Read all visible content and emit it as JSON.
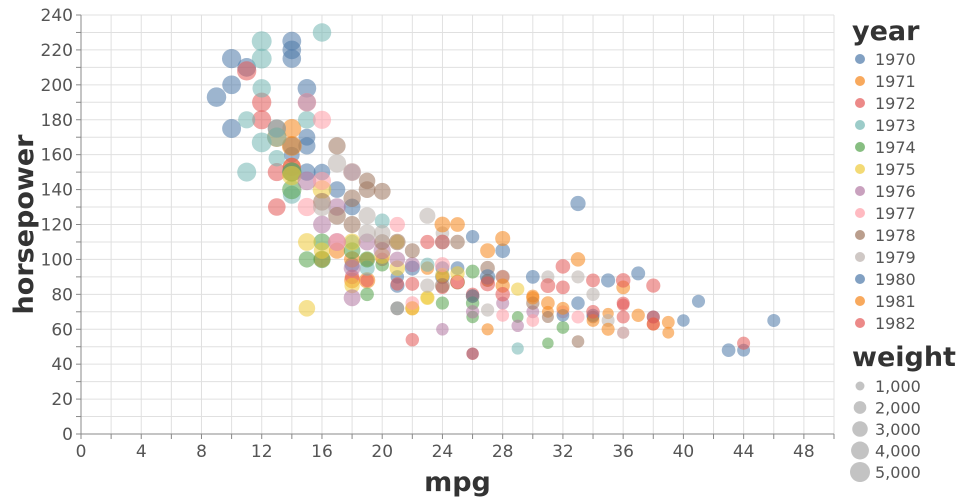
{
  "chart_data": {
    "type": "scatter",
    "title": "",
    "xlabel": "mpg",
    "ylabel": "horsepower",
    "xlim": [
      0,
      50
    ],
    "ylim": [
      0,
      240
    ],
    "x_ticks": [
      "0",
      "4",
      "8",
      "12",
      "16",
      "20",
      "24",
      "28",
      "32",
      "36",
      "40",
      "44",
      "48"
    ],
    "y_ticks": [
      "0",
      "20",
      "40",
      "60",
      "80",
      "100",
      "120",
      "140",
      "160",
      "180",
      "200",
      "220",
      "240"
    ],
    "grid": true,
    "color_legend": {
      "title": "year",
      "entries": [
        "1970",
        "1971",
        "1972",
        "1973",
        "1974",
        "1975",
        "1976",
        "1977",
        "1978",
        "1979",
        "1980",
        "1981",
        "1982"
      ],
      "colors": [
        "#4c78a8",
        "#f58518",
        "#e45756",
        "#72b7b2",
        "#54a24b",
        "#eeca3b",
        "#b279a2",
        "#ff9da6",
        "#9d755d",
        "#bab0ac",
        "#4c78a8",
        "#f58518",
        "#e45756"
      ]
    },
    "size_legend": {
      "title": "weight",
      "entries": [
        "1,000",
        "2,000",
        "3,000",
        "4,000",
        "5,000"
      ],
      "values": [
        1000,
        2000,
        3000,
        4000,
        5000
      ]
    },
    "series": [
      {
        "name": "1970",
        "points": [
          [
            9,
            193,
            4732
          ],
          [
            10,
            215,
            4615
          ],
          [
            10,
            200,
            4376
          ],
          [
            11,
            210,
            4382
          ],
          [
            14,
            225,
            4425
          ],
          [
            14,
            220,
            4354
          ],
          [
            14,
            215,
            4312
          ],
          [
            15,
            198,
            4341
          ],
          [
            15,
            190,
            4052
          ],
          [
            15,
            170,
            3563
          ],
          [
            15,
            150,
            3761
          ],
          [
            16,
            150,
            3433
          ],
          [
            17,
            140,
            3449
          ],
          [
            18,
            130,
            3504
          ],
          [
            18,
            150,
            3436
          ],
          [
            14,
            165,
            4209
          ],
          [
            22,
            95,
            2833
          ],
          [
            18,
            97,
            2774
          ],
          [
            21,
            85,
            2587
          ],
          [
            26,
            46,
            1835
          ],
          [
            24,
            90,
            2648
          ],
          [
            27,
            88,
            2130
          ],
          [
            25,
            87,
            2672
          ],
          [
            26,
            113,
            2234
          ],
          [
            21,
            90,
            2264
          ],
          [
            25,
            95,
            2375
          ],
          [
            24,
            95,
            2372
          ],
          [
            14,
            160,
            3090
          ],
          [
            10,
            175,
            4464
          ],
          [
            15,
            165,
            3693
          ]
        ]
      },
      {
        "name": "1971",
        "points": [
          [
            13,
            170,
            4746
          ],
          [
            14,
            175,
            4464
          ],
          [
            19,
            100,
            2634
          ],
          [
            23,
            95,
            2228
          ],
          [
            24,
            90,
            2130
          ],
          [
            25,
            87,
            2672
          ],
          [
            27,
            88,
            2130
          ],
          [
            28,
            90,
            2123
          ],
          [
            22,
            72,
            2408
          ],
          [
            18,
            88,
            3139
          ],
          [
            16,
            100,
            3329
          ],
          [
            17,
            105,
            3282
          ],
          [
            19,
            88,
            3302
          ],
          [
            18,
            100,
            3288
          ],
          [
            14,
            150,
            4096
          ],
          [
            14,
            153,
            4154
          ],
          [
            14,
            165,
            4955
          ],
          [
            30,
            79,
            2074
          ],
          [
            27,
            60,
            1834
          ],
          [
            31,
            70,
            1773
          ],
          [
            35,
            69,
            1613
          ],
          [
            26,
            79,
            2255
          ]
        ]
      },
      {
        "name": "1972",
        "points": [
          [
            13,
            175,
            4100
          ],
          [
            14,
            150,
            4312
          ],
          [
            14,
            153,
            4129
          ],
          [
            12,
            180,
            4499
          ],
          [
            13,
            130,
            3870
          ],
          [
            13,
            150,
            4098
          ],
          [
            12,
            190,
            4633
          ],
          [
            11,
            208,
            4633
          ],
          [
            22,
            86,
            2395
          ],
          [
            21,
            86,
            2226
          ],
          [
            18,
            90,
            2648
          ],
          [
            19,
            88,
            2264
          ],
          [
            21,
            72,
            2401
          ],
          [
            26,
            46,
            1950
          ],
          [
            22,
            54,
            2254
          ],
          [
            28,
            90,
            2345
          ],
          [
            24,
            84,
            2188
          ],
          [
            20,
            100,
            2279
          ],
          [
            26,
            80,
            2189
          ],
          [
            23,
            110,
            2542
          ],
          [
            25,
            87,
            2302
          ]
        ]
      },
      {
        "name": "1973",
        "points": [
          [
            11,
            180,
            3664
          ],
          [
            12,
            167,
            4906
          ],
          [
            13,
            170,
            4654
          ],
          [
            12,
            225,
            4951
          ],
          [
            11,
            150,
            4499
          ],
          [
            14,
            137,
            4042
          ],
          [
            13,
            158,
            3399
          ],
          [
            16,
            230,
            4278
          ],
          [
            12,
            198,
            4257
          ],
          [
            13,
            175,
            4215
          ],
          [
            14,
            150,
            4457
          ],
          [
            20,
            122,
            2807
          ],
          [
            24,
            110,
            2660
          ],
          [
            18,
            110,
            2660
          ],
          [
            21,
            72,
            2401
          ],
          [
            29,
            49,
            1867
          ],
          [
            23,
            97,
            2506
          ],
          [
            19,
            95,
            2912
          ],
          [
            15,
            180,
            3940
          ],
          [
            12,
            215,
            4952
          ]
        ]
      },
      {
        "name": "1974",
        "points": [
          [
            15,
            100,
            3336
          ],
          [
            16,
            100,
            3781
          ],
          [
            16,
            110,
            3632
          ],
          [
            19,
            100,
            3264
          ],
          [
            14,
            150,
            4699
          ],
          [
            14,
            140,
            4638
          ],
          [
            26,
            75,
            2230
          ],
          [
            31,
            52,
            1649
          ],
          [
            32,
            61,
            2003
          ],
          [
            26,
            67,
            1950
          ],
          [
            24,
            75,
            2164
          ],
          [
            29,
            67,
            1693
          ],
          [
            19,
            80,
            2302
          ],
          [
            20,
            97,
            2288
          ],
          [
            18,
            105,
            3459
          ],
          [
            26,
            93,
            2391
          ]
        ]
      },
      {
        "name": "1975",
        "points": [
          [
            15,
            72,
            3432
          ],
          [
            15,
            110,
            3962
          ],
          [
            16,
            105,
            3353
          ],
          [
            18,
            85,
            2945
          ],
          [
            21,
            95,
            3021
          ],
          [
            22,
            72,
            2542
          ],
          [
            23,
            78,
            2592
          ],
          [
            24,
            91,
            2592
          ],
          [
            29,
            83,
            2219
          ],
          [
            25,
            92,
            2572
          ],
          [
            20,
            102,
            3158
          ],
          [
            18,
            110,
            3645
          ],
          [
            14,
            148,
            4657
          ],
          [
            16,
            140,
            4335
          ],
          [
            21,
            110,
            2600
          ],
          [
            23,
            78,
            2155
          ]
        ]
      },
      {
        "name": "1976",
        "points": [
          [
            18,
            78,
            3574
          ],
          [
            17,
            110,
            3962
          ],
          [
            16,
            120,
            3962
          ],
          [
            18,
            95,
            3520
          ],
          [
            17,
            130,
            3840
          ],
          [
            15,
            145,
            4380
          ],
          [
            20,
            105,
            3725
          ],
          [
            21,
            100,
            3015
          ],
          [
            22,
            97,
            2790
          ],
          [
            24,
            60,
            1955
          ],
          [
            26,
            70,
            2190
          ],
          [
            28,
            75,
            2125
          ],
          [
            29,
            62,
            1940
          ],
          [
            30,
            70,
            2050
          ],
          [
            19,
            110,
            3645
          ]
        ]
      },
      {
        "name": "1977",
        "points": [
          [
            15,
            190,
            4325
          ],
          [
            16,
            145,
            4098
          ],
          [
            15,
            130,
            4215
          ],
          [
            17,
            110,
            3870
          ],
          [
            18,
            150,
            3830
          ],
          [
            16,
            180,
            4140
          ],
          [
            21,
            120,
            2940
          ],
          [
            22,
            75,
            2320
          ],
          [
            25,
            87,
            2145
          ],
          [
            30,
            65,
            2020
          ],
          [
            36,
            58,
            1825
          ],
          [
            33,
            67,
            2125
          ],
          [
            28,
            68,
            2065
          ],
          [
            32,
            70,
            2051
          ],
          [
            24,
            97,
            2830
          ]
        ]
      },
      {
        "name": "1978",
        "points": [
          [
            17,
            165,
            3730
          ],
          [
            18,
            135,
            3785
          ],
          [
            19,
            140,
            3535
          ],
          [
            20,
            139,
            3570
          ],
          [
            19,
            145,
            3385
          ],
          [
            16,
            133,
            3900
          ],
          [
            17,
            125,
            3880
          ],
          [
            18,
            120,
            3620
          ],
          [
            21,
            110,
            3425
          ],
          [
            20,
            110,
            3120
          ],
          [
            25,
            110,
            2655
          ],
          [
            24,
            85,
            2775
          ],
          [
            22,
            105,
            2795
          ],
          [
            27,
            95,
            2635
          ],
          [
            31,
            67,
            1800
          ],
          [
            34,
            67,
            1985
          ],
          [
            33,
            53,
            1985
          ],
          [
            30,
            75,
            2200
          ]
        ]
      },
      {
        "name": "1979",
        "points": [
          [
            17,
            155,
            4225
          ],
          [
            19,
            125,
            3665
          ],
          [
            18,
            150,
            4054
          ],
          [
            16,
            130,
            4060
          ],
          [
            20,
            115,
            3440
          ],
          [
            23,
            125,
            3205
          ],
          [
            19,
            115,
            3900
          ],
          [
            23,
            85,
            2560
          ],
          [
            24,
            115,
            2290
          ],
          [
            27,
            71,
            2190
          ],
          [
            28,
            90,
            2600
          ],
          [
            31,
            90,
            2130
          ],
          [
            34,
            80,
            2200
          ],
          [
            35,
            65,
            2110
          ],
          [
            36,
            58,
            1850
          ],
          [
            33,
            90,
            2155
          ]
        ]
      },
      {
        "name": "1980",
        "points": [
          [
            27,
            90,
            2950
          ],
          [
            33,
            132,
            2910
          ],
          [
            34,
            68,
            2155
          ],
          [
            44,
            48,
            2085
          ],
          [
            43,
            48,
            2335
          ],
          [
            41,
            76,
            2144
          ],
          [
            46,
            65,
            2110
          ],
          [
            40,
            65,
            1968
          ],
          [
            38,
            67,
            2120
          ],
          [
            35,
            88,
            2500
          ],
          [
            32,
            68,
            2020
          ],
          [
            33,
            75,
            2265
          ],
          [
            30,
            90,
            2370
          ],
          [
            37,
            92,
            2434
          ],
          [
            28,
            105,
            2720
          ],
          [
            26,
            79,
            2335
          ]
        ]
      },
      {
        "name": "1981",
        "points": [
          [
            30,
            78,
            2190
          ],
          [
            34,
            65,
            2045
          ],
          [
            35,
            60,
            2145
          ],
          [
            38,
            63,
            2180
          ],
          [
            37,
            68,
            2230
          ],
          [
            33,
            100,
            2615
          ],
          [
            31,
            75,
            2320
          ],
          [
            32,
            72,
            2100
          ],
          [
            25,
            120,
            2705
          ],
          [
            28,
            112,
            2835
          ],
          [
            24,
            120,
            3100
          ],
          [
            28,
            85,
            2535
          ],
          [
            39,
            58,
            1755
          ],
          [
            39,
            64,
            2050
          ],
          [
            36,
            84,
            2370
          ],
          [
            27,
            105,
            2800
          ]
        ]
      },
      {
        "name": "1982",
        "points": [
          [
            38,
            85,
            2500
          ],
          [
            36,
            88,
            2640
          ],
          [
            36,
            67,
            2125
          ],
          [
            38,
            63,
            2125
          ],
          [
            34,
            88,
            2395
          ],
          [
            32,
            84,
            2370
          ],
          [
            31,
            85,
            2720
          ],
          [
            36,
            74,
            1980
          ],
          [
            38,
            67,
            2125
          ],
          [
            44,
            52,
            2130
          ],
          [
            34,
            70,
            2295
          ],
          [
            36,
            75,
            2130
          ],
          [
            28,
            80,
            2625
          ],
          [
            32,
            96,
            2665
          ],
          [
            27,
            86,
            2790
          ],
          [
            24,
            110,
            2720
          ]
        ]
      }
    ]
  }
}
